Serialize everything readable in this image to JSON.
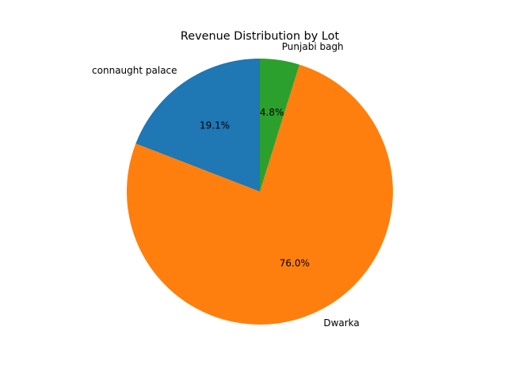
{
  "chart_data": {
    "type": "pie",
    "title": "Revenue Distribution by Lot",
    "categories": [
      "connaught palace",
      "Dwarka",
      "Punjabi bagh"
    ],
    "values": [
      19.1,
      76.0,
      4.8
    ],
    "percent_labels": [
      "19.1%",
      "76.0%",
      "4.8%"
    ],
    "colors": [
      "#1f77b4",
      "#ff7f0e",
      "#2ca02c"
    ],
    "start_angle_deg": 90,
    "direction": "counterclockwise"
  }
}
